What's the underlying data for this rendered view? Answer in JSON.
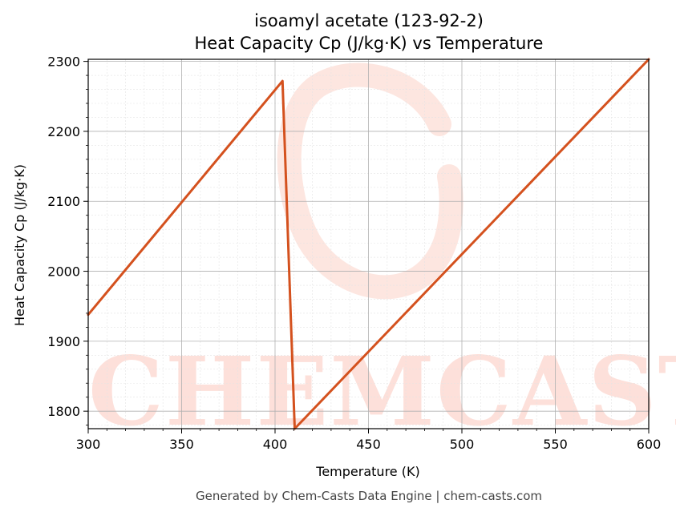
{
  "chart_data": {
    "type": "line",
    "title": "isoamyl acetate (123-92-2)",
    "subtitle": "Heat Capacity Cp (J/kg·K) vs Temperature",
    "xlabel": "Temperature (K)",
    "ylabel": "Heat Capacity Cp (J/kg·K)",
    "xlim": [
      300,
      600
    ],
    "ylim": [
      1775,
      2303
    ],
    "x_ticks": [
      300,
      350,
      400,
      450,
      500,
      550,
      600
    ],
    "y_ticks": [
      1800,
      1900,
      2000,
      2100,
      2200,
      2300
    ],
    "grid": true,
    "legend": "none",
    "series": [
      {
        "color": "#d4511e",
        "points": [
          [
            300,
            1938
          ],
          [
            404,
            2272
          ],
          [
            410.5,
            1775
          ],
          [
            600,
            2303
          ]
        ]
      }
    ]
  },
  "watermark": {
    "text": "CHEMCASTS",
    "color": "#fdded8"
  },
  "footer": "Generated by Chem-Casts Data Engine | chem-casts.com"
}
